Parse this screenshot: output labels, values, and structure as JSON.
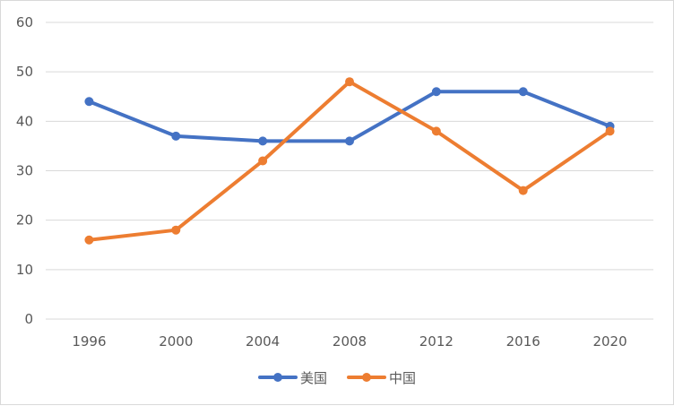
{
  "chart_data": {
    "type": "line",
    "title": "",
    "xlabel": "",
    "ylabel": "",
    "categories": [
      "1996",
      "2000",
      "2004",
      "2008",
      "2012",
      "2016",
      "2020"
    ],
    "ylim": [
      0,
      60
    ],
    "yticks": [
      "0",
      "10",
      "20",
      "30",
      "40",
      "50",
      "60"
    ],
    "grid": true,
    "legend_position": "bottom",
    "series": [
      {
        "name": "美国",
        "color": "#4472c4",
        "values": [
          44,
          37,
          36,
          36,
          46,
          46,
          39
        ]
      },
      {
        "name": "中国",
        "color": "#ed7d31",
        "values": [
          16,
          18,
          32,
          48,
          38,
          26,
          38
        ]
      }
    ]
  }
}
